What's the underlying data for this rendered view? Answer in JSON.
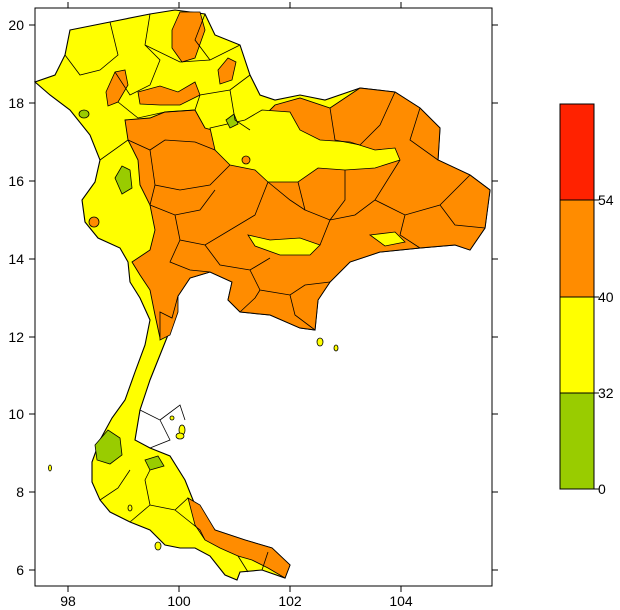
{
  "map": {
    "x_axis": {
      "ticks": [
        "98",
        "100",
        "102",
        "104"
      ]
    },
    "y_axis": {
      "ticks": [
        "20",
        "18",
        "16",
        "14",
        "12",
        "10",
        "8",
        "6"
      ]
    }
  },
  "legend": {
    "labels": [
      "54",
      "40",
      "32",
      "0"
    ],
    "bins": [
      {
        "range": "above 54",
        "color": "#ff2200"
      },
      {
        "range": "40 - 54",
        "color": "#ff8c00"
      },
      {
        "range": "32 - 40",
        "color": "#ffff00"
      },
      {
        "range": "0 - 32",
        "color": "#99cc00"
      }
    ]
  },
  "colors": {
    "orange": "#ff8c00",
    "yellow": "#ffff00",
    "green": "#99cc00",
    "red": "#ff2200"
  }
}
